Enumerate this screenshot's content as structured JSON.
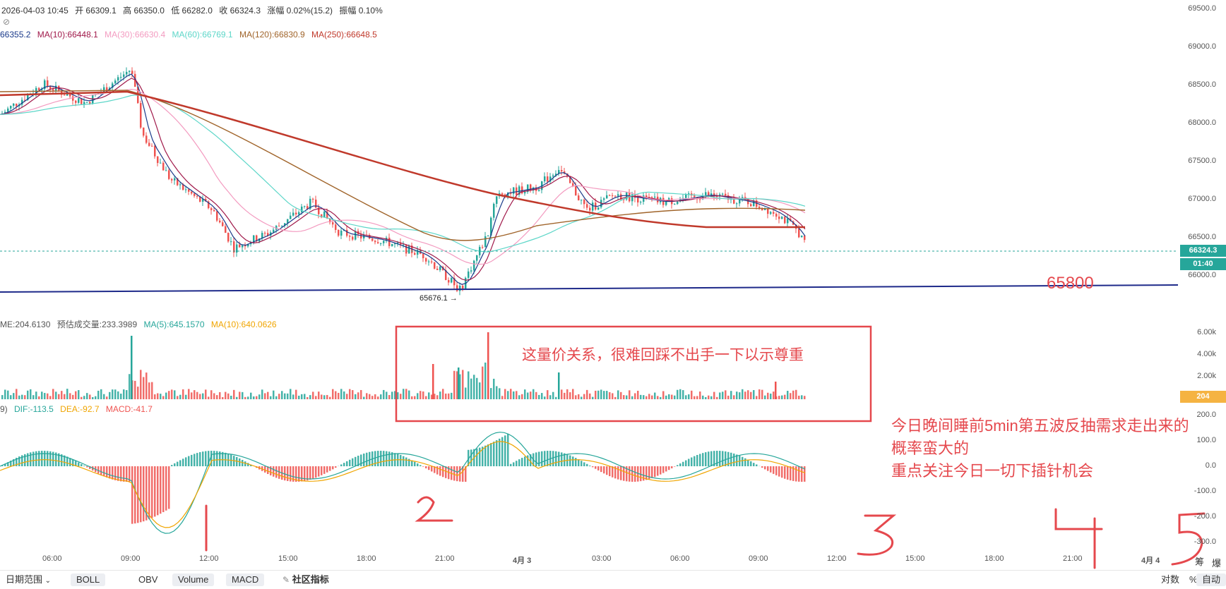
{
  "info_bar": {
    "datetime": "2026-04-03 10:45",
    "open": "开 66309.1",
    "high": "高 66350.0",
    "low": "低 66282.0",
    "close": "收 66324.3",
    "change": "涨幅 0.02%(15.2)",
    "amplitude": "振幅 0.10%"
  },
  "ma_bar": {
    "ma5": "66355.2",
    "ma10": "MA(10):66448.1",
    "ma30": "MA(30):66630.4",
    "ma60": "MA(60):66769.1",
    "ma120": "MA(120):66830.9",
    "ma250": "MA(250):66648.5"
  },
  "volume_bar": {
    "vol": "ME:204.6130",
    "est": "预估成交量:233.3989",
    "ma5": "MA(5):645.1570",
    "ma10": "MA(10):640.0626"
  },
  "macd_bar": {
    "prefix": "9)",
    "dif": "DIF:-113.5",
    "dea": "DEA:-92.7",
    "macd": "MACD:-41.7"
  },
  "price_axis": [
    "69500.0",
    "69000.0",
    "68500.0",
    "68000.0",
    "67500.0",
    "67000.0",
    "66500.0",
    "66000.0"
  ],
  "volume_axis": [
    "6.00k",
    "4.00k",
    "2.00k"
  ],
  "macd_axis": [
    "200.0",
    "100.0",
    "0.0",
    "-100.0",
    "-200.0",
    "-300.0"
  ],
  "time_axis": [
    "06:00",
    "09:00",
    "12:00",
    "15:00",
    "18:00",
    "21:00",
    "4月 3",
    "03:00",
    "06:00",
    "09:00",
    "12:00",
    "15:00",
    "18:00",
    "21:00",
    "4月 4"
  ],
  "last_price": "66324.3",
  "countdown": "01:40",
  "volume_tag": "204",
  "low_marker": "65676.1",
  "annotations": {
    "support": "65800",
    "volume_note": "这量价关系，很难回踩不出手一下以示尊重",
    "main_note": [
      "今日晚间睡前5min第五波反抽需求走出来的",
      "概率蛮大的",
      "重点关注今日一切下插针机会"
    ],
    "wave_labels": [
      "1",
      "2",
      "3",
      "4",
      "5"
    ]
  },
  "bottom_right": {
    "chip": "筹",
    "burst": "爆",
    "log": "对数",
    "pct": "%",
    "auto": "自动"
  },
  "toolbar": {
    "date_range": "日期范围",
    "boll": "BOLL",
    "obv": "OBV",
    "volume": "Volume",
    "macd": "MACD",
    "community": "社区指标"
  },
  "colors": {
    "up": "#26a69a",
    "down": "#ef5350",
    "ma5": "#1a3a8a",
    "ma10": "#a0194a",
    "ma30": "#f39bc0",
    "ma60": "#5cd6c8",
    "ma120": "#a0642a",
    "ma250": "#c0392b",
    "support": "#1e2a8a",
    "annotation": "#e5484d"
  }
}
